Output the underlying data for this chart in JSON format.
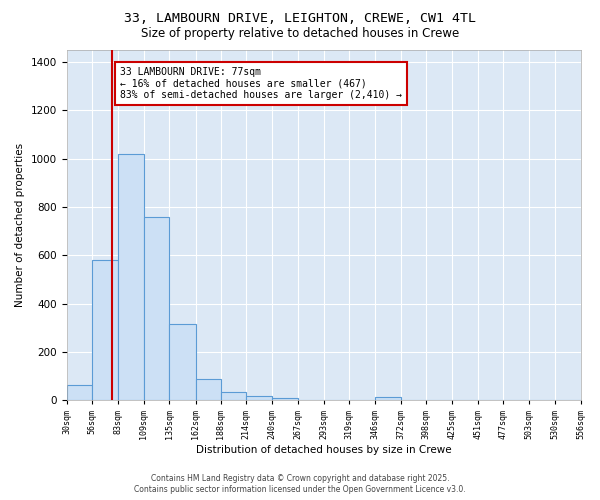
{
  "title_line1": "33, LAMBOURN DRIVE, LEIGHTON, CREWE, CW1 4TL",
  "title_line2": "Size of property relative to detached houses in Crewe",
  "xlabel": "Distribution of detached houses by size in Crewe",
  "ylabel": "Number of detached properties",
  "bins": [
    30,
    56,
    83,
    109,
    135,
    162,
    188,
    214,
    240,
    267,
    293,
    319,
    346,
    372,
    398,
    425,
    451,
    477,
    503,
    530,
    556
  ],
  "bar_heights": [
    65,
    580,
    1020,
    760,
    315,
    90,
    35,
    20,
    12,
    0,
    0,
    0,
    13,
    0,
    0,
    0,
    0,
    0,
    0,
    0
  ],
  "bar_color": "#cce0f5",
  "bar_edge_color": "#5b9bd5",
  "vline_x": 77,
  "vline_color": "#cc0000",
  "annotation_text": "33 LAMBOURN DRIVE: 77sqm\n← 16% of detached houses are smaller (467)\n83% of semi-detached houses are larger (2,410) →",
  "annotation_box_color": "#ffffff",
  "annotation_edge_color": "#cc0000",
  "ylim": [
    0,
    1450
  ],
  "yticks": [
    0,
    200,
    400,
    600,
    800,
    1000,
    1200,
    1400
  ],
  "background_color": "#dce8f5",
  "fig_background": "#ffffff",
  "footer_line1": "Contains HM Land Registry data © Crown copyright and database right 2025.",
  "footer_line2": "Contains public sector information licensed under the Open Government Licence v3.0."
}
